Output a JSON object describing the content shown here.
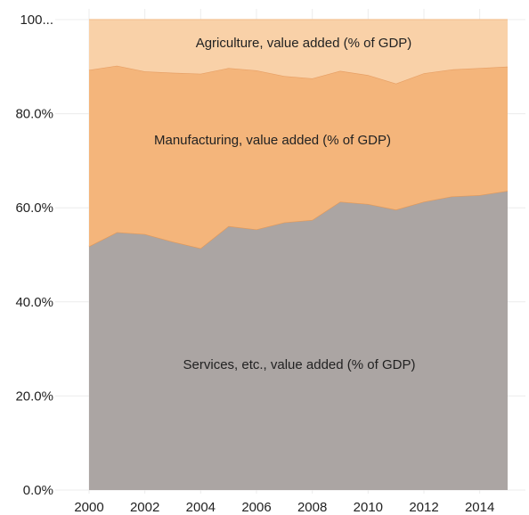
{
  "chart_data": {
    "type": "area",
    "stacked": true,
    "x": [
      2000,
      2001,
      2002,
      2003,
      2004,
      2005,
      2006,
      2007,
      2008,
      2009,
      2010,
      2011,
      2012,
      2013,
      2014,
      2015
    ],
    "x_tick_labels": [
      "2000",
      "2002",
      "2004",
      "2006",
      "2008",
      "2010",
      "2012",
      "2014"
    ],
    "y_tick_labels": [
      "0.0%",
      "20.0%",
      "40.0%",
      "60.0%",
      "80.0%",
      "100..."
    ],
    "ylim": [
      0,
      100
    ],
    "grid": true,
    "series": [
      {
        "name": "Services, etc., value added (% of GDP)",
        "color": "#aba5a3",
        "line_color": "#e0995b",
        "values": [
          51.8,
          54.8,
          54.4,
          52.8,
          51.4,
          56.1,
          55.4,
          56.9,
          57.4,
          61.3,
          60.8,
          59.6,
          61.3,
          62.4,
          62.7,
          63.6
        ]
      },
      {
        "name": "Manufacturing, value added (% of GDP)",
        "color": "#f4b57b",
        "line_color": "#e7a066",
        "values": [
          37.5,
          35.4,
          34.6,
          35.9,
          37.1,
          33.6,
          33.8,
          31.1,
          30.1,
          27.8,
          27.4,
          26.8,
          27.3,
          27.0,
          27.0,
          26.4
        ]
      },
      {
        "name": "Agriculture, value added (% of GDP)",
        "color": "#f9d1a8",
        "line_color": "#f4c394",
        "values": [
          10.7,
          9.8,
          11.0,
          11.3,
          11.5,
          10.3,
          10.8,
          12.0,
          12.5,
          10.9,
          11.8,
          13.6,
          11.4,
          10.6,
          10.3,
          10.0
        ]
      }
    ]
  }
}
